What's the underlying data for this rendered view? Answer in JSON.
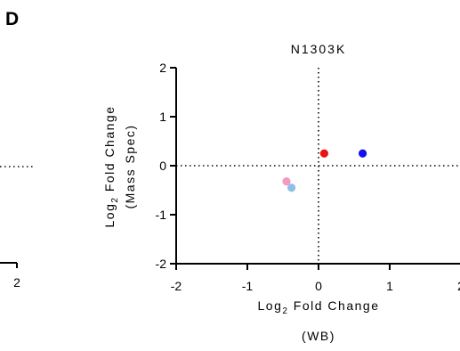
{
  "panel_label": "D",
  "chart_data": {
    "type": "scatter",
    "title": "N1303K",
    "xlabel_main": "Log",
    "xlabel_sub": "2",
    "xlabel_rest": " Fold Change",
    "xlabel_line2": "(WB)",
    "ylabel_main": "Log",
    "ylabel_sub": "2",
    "ylabel_rest": " Fold Change",
    "ylabel_line2": "(Mass Spec)",
    "xlim": [
      -2,
      2
    ],
    "ylim": [
      -2,
      2
    ],
    "x_ticks": [
      {
        "value": -2,
        "label": "-2"
      },
      {
        "value": -1,
        "label": "-1"
      },
      {
        "value": 0,
        "label": "0"
      },
      {
        "value": 1,
        "label": "1"
      },
      {
        "value": 2,
        "label": "2"
      }
    ],
    "y_ticks": [
      {
        "value": -2,
        "label": "-2"
      },
      {
        "value": -1,
        "label": "-1"
      },
      {
        "value": 0,
        "label": "0"
      },
      {
        "value": 1,
        "label": "1"
      },
      {
        "value": 2,
        "label": "2"
      }
    ],
    "reference_lines": {
      "x": 0,
      "y": 0,
      "style": "dotted"
    },
    "points": [
      {
        "x": 0.08,
        "y": 0.25,
        "color": "#ee1111"
      },
      {
        "x": 0.62,
        "y": 0.25,
        "color": "#1111ee"
      },
      {
        "x": -0.45,
        "y": -0.32,
        "color": "#f49ac2"
      },
      {
        "x": -0.38,
        "y": -0.45,
        "color": "#8fbfe6"
      }
    ]
  },
  "left_fragment": {
    "tick_label": "2"
  }
}
